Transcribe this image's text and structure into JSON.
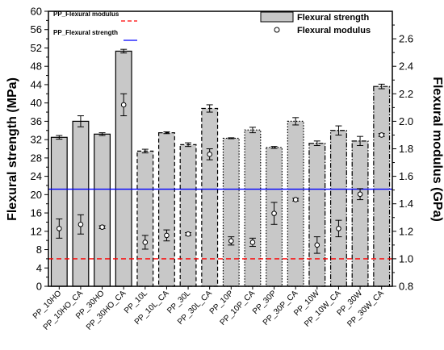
{
  "chart_data": {
    "type": "bar",
    "categories": [
      "PP_10HO",
      "PP_10HO_CA",
      "PP_30HO",
      "PP_30HO_CA",
      "PP_10L",
      "PP_10L_CA",
      "PP_30L",
      "PP_30L_CA",
      "PP_10P",
      "PP_10P_CA",
      "PP_30P",
      "PP_30P_CA",
      "PP_10W",
      "PP_10W_CA",
      "PP_30W",
      "PP_30W_CA"
    ],
    "bar_style": [
      "solid",
      "solid",
      "solid",
      "solid",
      "dashed",
      "dashed",
      "dashed",
      "dashed",
      "dotted",
      "dotted",
      "dotted",
      "dotted",
      "dashdot",
      "dashdot",
      "dashdot",
      "dashdot"
    ],
    "series": [
      {
        "name": "Flexural strength",
        "axis": "left",
        "kind": "bar",
        "values": [
          32.5,
          36.0,
          33.2,
          51.3,
          29.5,
          33.5,
          30.9,
          38.8,
          32.3,
          34.1,
          30.3,
          36.0,
          31.2,
          34.0,
          31.7,
          43.6
        ],
        "errors": [
          0.4,
          1.2,
          0.3,
          0.4,
          0.4,
          0.2,
          0.4,
          0.8,
          0.1,
          0.6,
          0.2,
          0.8,
          0.5,
          1.0,
          1.0,
          0.5
        ]
      },
      {
        "name": "Flexural modulus",
        "axis": "right",
        "kind": "scatter",
        "values": [
          1.22,
          1.25,
          1.23,
          2.12,
          1.12,
          1.17,
          1.18,
          1.76,
          1.13,
          1.12,
          1.33,
          1.43,
          1.1,
          1.22,
          1.47,
          1.9
        ],
        "errors": [
          0.07,
          0.07,
          0.01,
          0.08,
          0.05,
          0.04,
          0.01,
          0.04,
          0.03,
          0.03,
          0.08,
          0.01,
          0.06,
          0.06,
          0.04,
          0.01
        ]
      }
    ],
    "reference_lines": [
      {
        "name": "PP_Flexural modulus",
        "axis": "right",
        "value": 1.0,
        "color": "#ff0000",
        "style": "dashed"
      },
      {
        "name": "PP_Flexural strength",
        "axis": "left",
        "value": 21.2,
        "color": "#0000ff",
        "style": "solid"
      }
    ],
    "ylabel": "Flexural strength (MPa)",
    "y2label": "Flexural modulus (GPa)",
    "ylim": [
      0,
      60
    ],
    "y2lim": [
      0.8,
      2.8
    ],
    "yticks": [
      0,
      4,
      8,
      12,
      16,
      20,
      24,
      28,
      32,
      36,
      40,
      44,
      48,
      52,
      56,
      60
    ],
    "y2ticks": [
      0.8,
      1.0,
      1.2,
      1.4,
      1.6,
      1.8,
      2.0,
      2.2,
      2.4,
      2.6
    ],
    "legend_position": "top-right",
    "grid": false,
    "colors": {
      "bar_fill": "#c8c8c8",
      "bar_stroke": "#000000",
      "ref_strength": "#0000ff",
      "ref_modulus": "#ff0000"
    }
  }
}
